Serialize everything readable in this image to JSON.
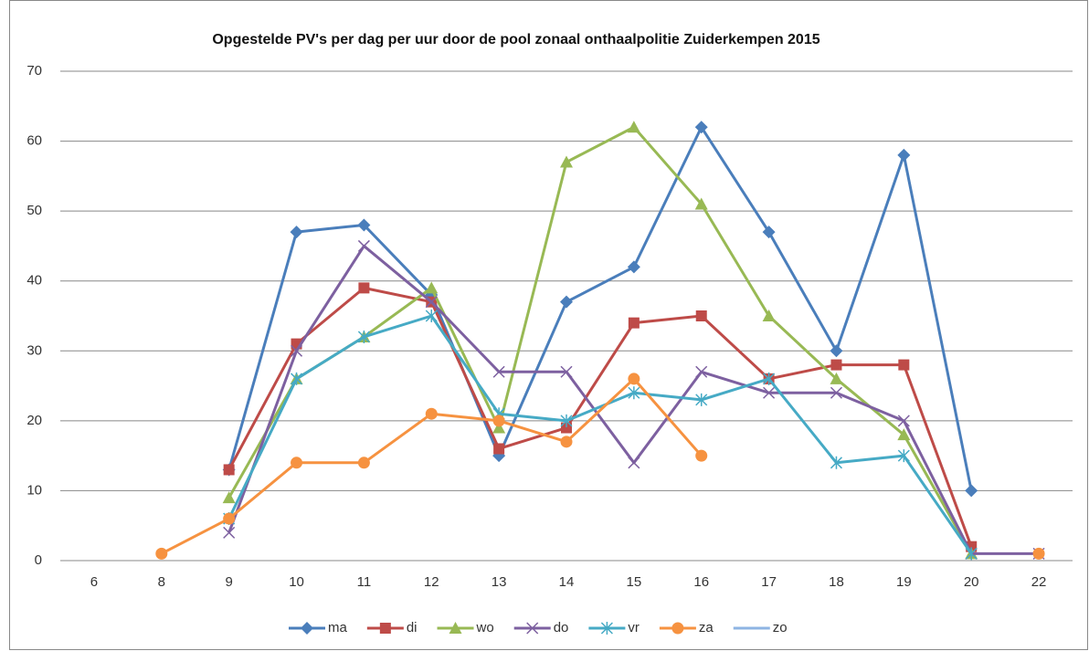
{
  "chart_data": {
    "type": "line",
    "title": "Opgestelde PV's per dag per uur door de pool zonaal onthaalpolitie Zuiderkempen 2015",
    "categories": [
      "6",
      "8",
      "9",
      "10",
      "11",
      "12",
      "13",
      "14",
      "15",
      "16",
      "17",
      "18",
      "19",
      "20",
      "22"
    ],
    "series": [
      {
        "name": "ma",
        "color": "#4a7ebb",
        "marker": "diamond",
        "values": [
          null,
          null,
          13,
          47,
          48,
          38,
          15,
          37,
          42,
          62,
          47,
          30,
          58,
          10,
          null
        ]
      },
      {
        "name": "di",
        "color": "#be4b48",
        "marker": "square",
        "values": [
          null,
          null,
          13,
          31,
          39,
          37,
          16,
          19,
          34,
          35,
          26,
          28,
          28,
          2,
          null
        ]
      },
      {
        "name": "wo",
        "color": "#98b954",
        "marker": "triangle",
        "values": [
          null,
          null,
          9,
          26,
          32,
          39,
          19,
          57,
          62,
          51,
          35,
          26,
          18,
          1,
          null
        ]
      },
      {
        "name": "do",
        "color": "#7d60a0",
        "marker": "x",
        "values": [
          null,
          null,
          4,
          30,
          45,
          37,
          27,
          27,
          14,
          27,
          24,
          24,
          20,
          1,
          1
        ]
      },
      {
        "name": "vr",
        "color": "#46aac5",
        "marker": "star",
        "values": [
          null,
          null,
          6,
          26,
          32,
          35,
          21,
          20,
          24,
          23,
          26,
          14,
          15,
          1,
          null
        ]
      },
      {
        "name": "za",
        "color": "#f69240",
        "marker": "circle",
        "values": [
          null,
          1,
          6,
          14,
          14,
          21,
          20,
          17,
          26,
          15,
          null,
          null,
          null,
          null,
          1
        ]
      },
      {
        "name": "zo",
        "color": "#8eb4e3",
        "marker": "none",
        "values": [
          null,
          null,
          null,
          null,
          null,
          null,
          null,
          null,
          null,
          null,
          null,
          null,
          null,
          null,
          null
        ]
      }
    ],
    "ylim": [
      0,
      70
    ],
    "yticks": [
      0,
      10,
      20,
      30,
      40,
      50,
      60,
      70
    ],
    "grid": true,
    "legend": "bottom"
  }
}
